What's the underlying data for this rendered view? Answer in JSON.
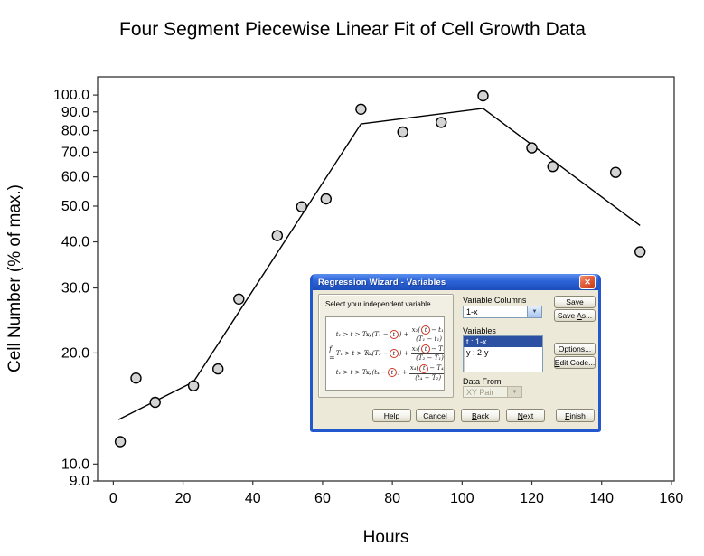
{
  "chart_data": {
    "type": "scatter",
    "title": "Four Segment Piecewise Linear Fit of Cell Growth Data",
    "xlabel": "Hours",
    "ylabel": "Cell Number (% of max.)",
    "x_scale": "linear",
    "y_scale": "log",
    "xlim": [
      -4.5,
      160.8
    ],
    "ylim": [
      9,
      112
    ],
    "x_ticks": [
      0,
      20,
      40,
      60,
      80,
      100,
      120,
      140,
      160
    ],
    "y_ticks": [
      100,
      90,
      80,
      70,
      60,
      50,
      40,
      30,
      20,
      10,
      9
    ],
    "y_tick_labels": [
      "100.0",
      "90.0",
      "80.0",
      "70.0",
      "60.0",
      "50.0",
      "40.0",
      "30.0",
      "20.0",
      "10.0",
      "9.0"
    ],
    "grid": false,
    "legend": null,
    "marker": {
      "shape": "circle",
      "fill": "#D4D4D4",
      "stroke": "#000000"
    },
    "points": [
      [
        2,
        11.5
      ],
      [
        6.5,
        17.1
      ],
      [
        12,
        14.7
      ],
      [
        23,
        16.3
      ],
      [
        30,
        18.1
      ],
      [
        36,
        28.0
      ],
      [
        47,
        41.6
      ],
      [
        54,
        49.8
      ],
      [
        61,
        52.3
      ],
      [
        71,
        91.5
      ],
      [
        83,
        79.4
      ],
      [
        94,
        84.3
      ],
      [
        106,
        99.5
      ],
      [
        120,
        71.9
      ],
      [
        126,
        64.0
      ],
      [
        144,
        61.7
      ],
      [
        151,
        37.6
      ]
    ],
    "fit_line": {
      "type": "four-segment piecewise linear",
      "color": "#000000",
      "breakpoints": [
        [
          1.5,
          13.2
        ],
        [
          23,
          16.7
        ],
        [
          71,
          83.5
        ],
        [
          106,
          92.0
        ],
        [
          151,
          44.3
        ]
      ]
    }
  },
  "dialog": {
    "title": "Regression Wizard - Variables",
    "close_glyph": "✕",
    "group_label": "Select your independent variable",
    "formula": {
      "lhs": "f =",
      "circled_var": "t",
      "rows": [
        {
          "cond": "t₁ > t > T₁,",
          "pre": "x₁(T₁ −",
          "mid": ") +",
          "num_pre": "x₂(",
          "num_post": " − t₁)",
          "den": "(T₁ − t₁)"
        },
        {
          "cond": "T₁ > t > T₂,",
          "pre": "x₂(T₂ −",
          "mid": ") +",
          "num_pre": "x₃(",
          "num_post": " − T₁)",
          "den": "(T₂ − T₁)"
        },
        {
          "cond": "t₁ > t > T₁,",
          "pre": "x₃(t₄ −",
          "mid": ") +",
          "num_pre": "x₄(",
          "num_post": " − T₄)",
          "den": "(t₄ − T₂)"
        }
      ]
    },
    "variable_columns": {
      "label": "Variable Columns",
      "value": "1-x"
    },
    "variables": {
      "label": "Variables",
      "items": [
        "t : 1-x",
        "y : 2-y"
      ],
      "selected_index": 0
    },
    "data_from": {
      "label": "Data From",
      "value": "XY Pair",
      "disabled": true
    },
    "right_buttons": [
      {
        "name": "save-button",
        "pre": "",
        "key": "S",
        "post": "ave"
      },
      {
        "name": "save-as-button",
        "pre": "Save ",
        "key": "A",
        "post": "s..."
      },
      {
        "name": "options-button",
        "pre": "",
        "key": "O",
        "post": "ptions..."
      },
      {
        "name": "edit-code-button",
        "pre": "",
        "key": "E",
        "post": "dit Code..."
      }
    ],
    "bottom_buttons": [
      {
        "name": "help-button",
        "pre": "Help",
        "key": "",
        "post": ""
      },
      {
        "name": "cancel-button",
        "pre": "Cancel",
        "key": "",
        "post": ""
      },
      {
        "name": "back-button",
        "pre": "",
        "key": "B",
        "post": "ack"
      },
      {
        "name": "next-button",
        "pre": "",
        "key": "N",
        "post": "ext"
      },
      {
        "name": "finish-button",
        "pre": "",
        "key": "F",
        "post": "inish"
      }
    ]
  },
  "colors": {
    "titlebar_blue": "#2B63D6",
    "window_border": "#2357CE",
    "selection_navy": "#2C51A3",
    "dialog_bg": "#ECE9D8",
    "close_button_red": "#D6492A",
    "formula_circle_red": "#CC3322",
    "marker_fill": "#D4D4D4"
  }
}
